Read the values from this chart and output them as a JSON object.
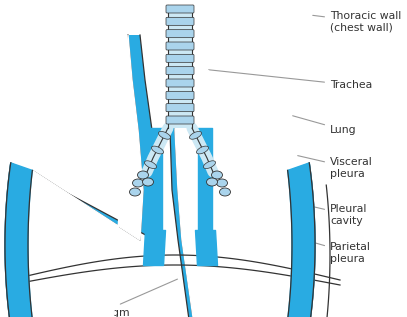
{
  "bg": "#ffffff",
  "teal": "#29abe2",
  "outline": "#333333",
  "label_color": "#333333",
  "line_color": "#999999",
  "trachea_fill": "#cce8f4",
  "trachea_ring": "#aad4ec",
  "font_size": 7.8,
  "labels": {
    "thoracic_wall": "Thoracic wall\n(chest wall)",
    "trachea": "Trachea",
    "lung": "Lung",
    "visceral_pleura": "Visceral\npleura",
    "pleural_cavity": "Pleural\ncavity",
    "parietal_pleura": "Parietal\npleura",
    "diaphragm": "Diaphragm"
  }
}
